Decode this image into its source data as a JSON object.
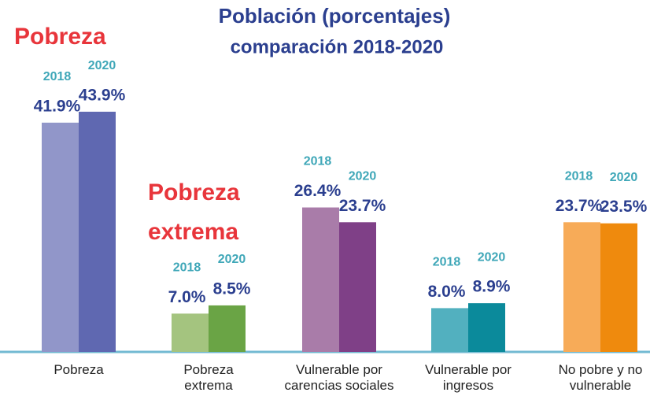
{
  "chart_data": {
    "type": "bar",
    "title": "Población (porcentajes)",
    "subtitle": "comparación 2018-2020",
    "annotations": [
      "Pobreza",
      "Pobreza extrema"
    ],
    "categories": [
      "Pobreza",
      "Pobreza extrema",
      "Vulnerable por carencias sociales",
      "Vulnerable por ingresos",
      "No pobre y no vulnerable"
    ],
    "series": [
      {
        "name": "2018",
        "colors": [
          "#9196c9",
          "#a4c47f",
          "#a97ca9",
          "#52b0bf",
          "#f7ab58"
        ],
        "values": [
          41.9,
          7.0,
          26.4,
          8.0,
          23.7
        ],
        "value_labels": [
          "41.9%",
          "7.0%",
          "26.4%",
          "8.0%",
          "23.7%"
        ]
      },
      {
        "name": "2020",
        "colors": [
          "#5f68b1",
          "#6aa445",
          "#7f4087",
          "#0b8a9b",
          "#ef8a0d"
        ],
        "values": [
          43.9,
          8.5,
          23.7,
          8.9,
          23.5
        ],
        "value_labels": [
          "43.9%",
          "8.5%",
          "23.7%",
          "8.9%",
          "23.5%"
        ]
      }
    ]
  }
}
